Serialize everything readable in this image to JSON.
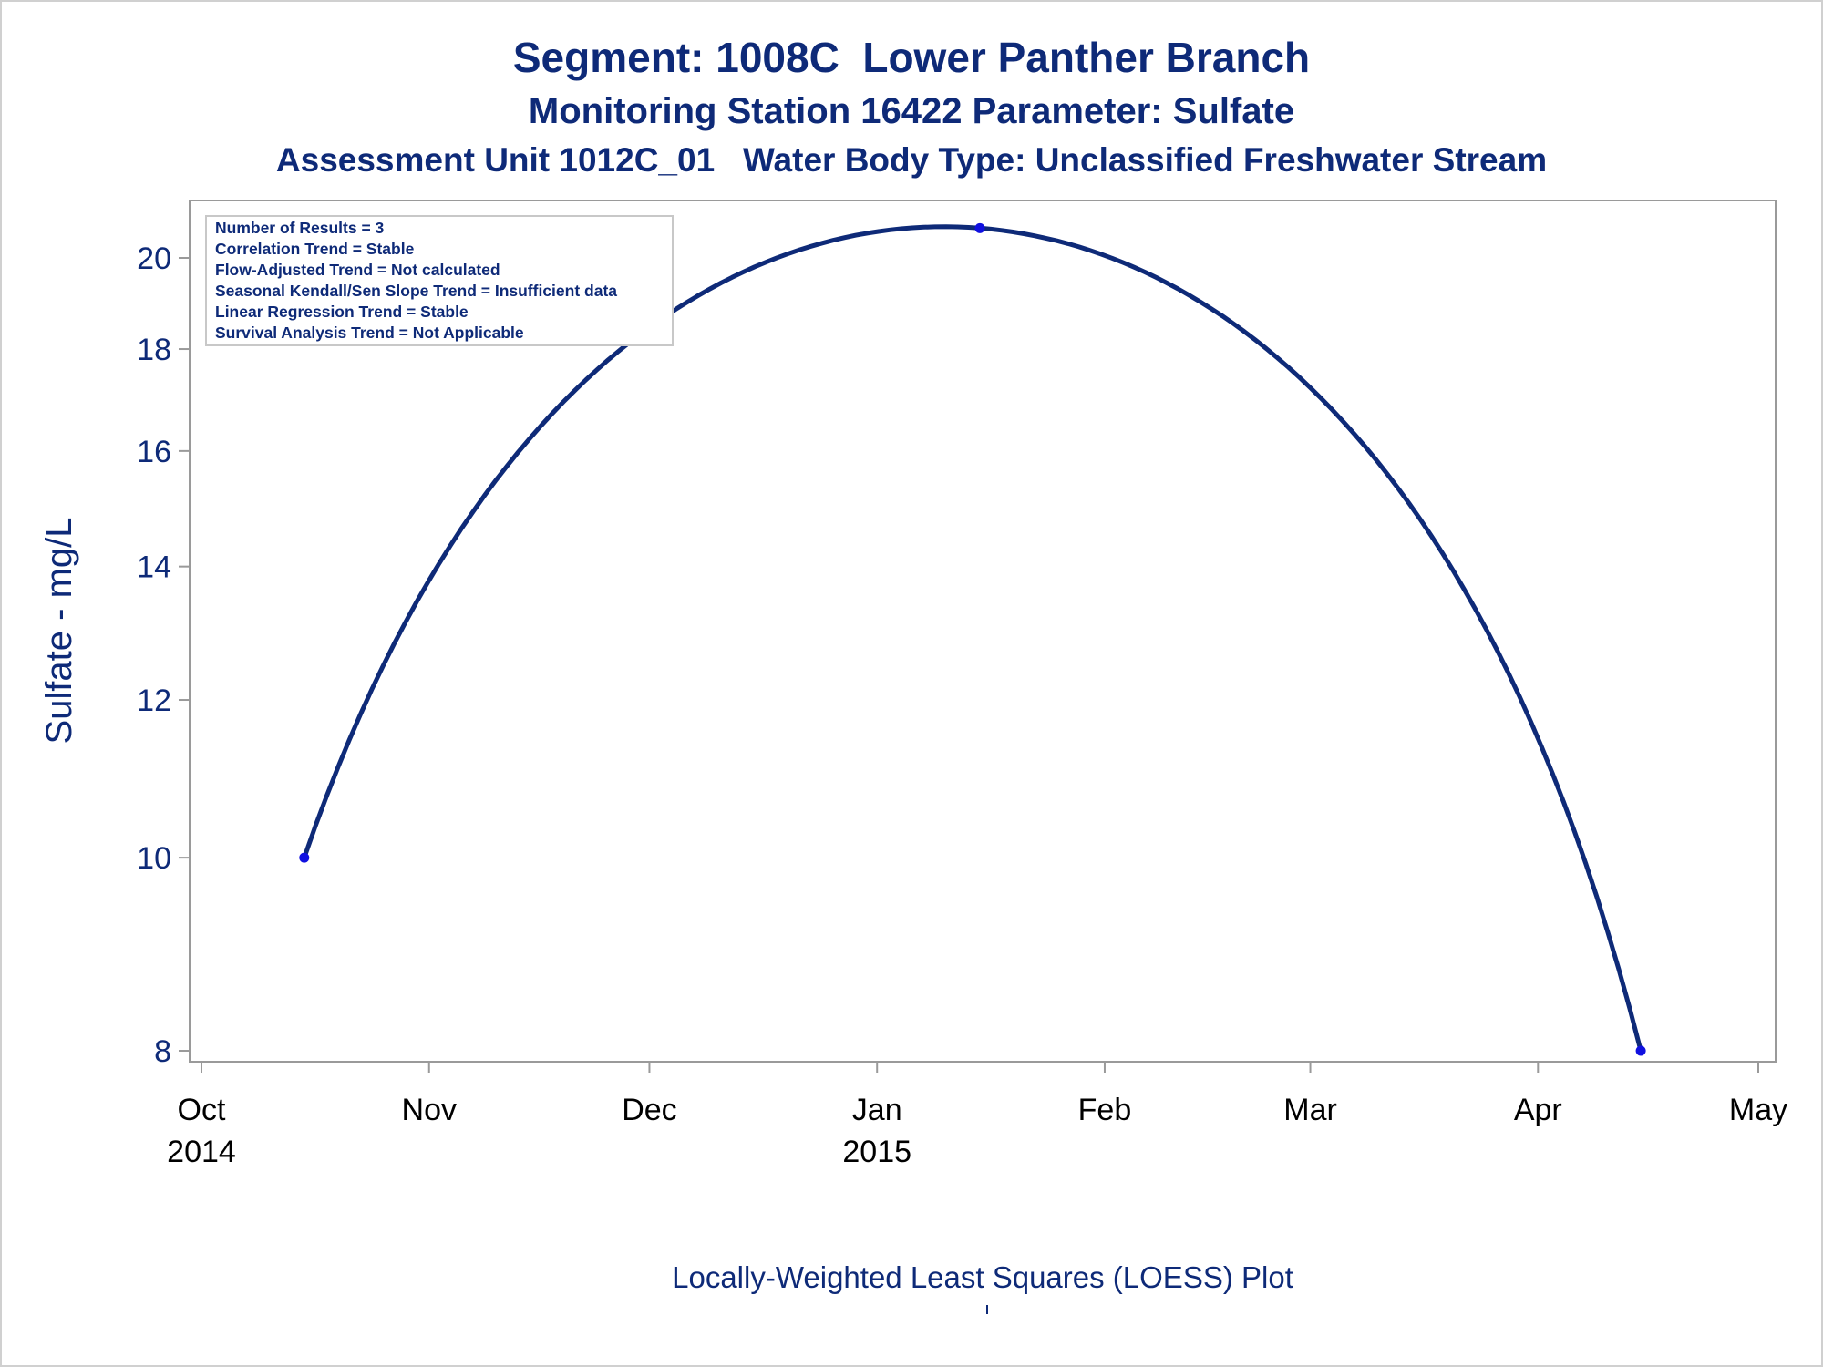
{
  "titles": {
    "line1": "Segment: 1008C  Lower Panther Branch",
    "line2": "Monitoring Station 16422 Parameter: Sulfate",
    "line3": "Assessment Unit 1012C_01   Water Body Type: Unclassified Freshwater Stream"
  },
  "inset": {
    "lines": [
      "Number of Results = 3",
      "Correlation Trend = Stable",
      "Flow-Adjusted Trend = Not calculated",
      "Seasonal Kendall/Sen Slope Trend = Insufficient data",
      "Linear Regression Trend = Stable",
      "Survival Analysis Trend = Not Applicable"
    ]
  },
  "footnote": "Locally-Weighted Least Squares (LOESS) Plot",
  "colors": {
    "text": "#0e2a78",
    "line": "#0e2a78",
    "marker": "#1010e0",
    "axis": "#9a9a9a"
  },
  "chart_data": {
    "type": "line",
    "title": "Segment: 1008C  Lower Panther Branch",
    "xlabel": "",
    "ylabel": "Sulfate - mg/L",
    "yscale": "log",
    "ylim": [
      7.8,
      21.1
    ],
    "xlim": [
      "2014-10-01",
      "2015-05-01"
    ],
    "yticks": [
      8,
      10,
      12,
      14,
      16,
      18,
      20
    ],
    "xticks": [
      {
        "date": "2014-10-01",
        "label": "Oct",
        "year": "2014"
      },
      {
        "date": "2014-11-01",
        "label": "Nov",
        "year": ""
      },
      {
        "date": "2014-12-01",
        "label": "Dec",
        "year": ""
      },
      {
        "date": "2015-01-01",
        "label": "Jan",
        "year": "2015"
      },
      {
        "date": "2015-02-01",
        "label": "Feb",
        "year": ""
      },
      {
        "date": "2015-03-01",
        "label": "Mar",
        "year": ""
      },
      {
        "date": "2015-04-01",
        "label": "Apr",
        "year": ""
      },
      {
        "date": "2015-05-01",
        "label": "May",
        "year": ""
      }
    ],
    "points": [
      {
        "x": "2014-10-15",
        "y": 10
      },
      {
        "x": "2015-01-15",
        "y": 20.7
      },
      {
        "x": "2015-04-15",
        "y": 8
      }
    ],
    "grid": false,
    "legend": "none"
  }
}
